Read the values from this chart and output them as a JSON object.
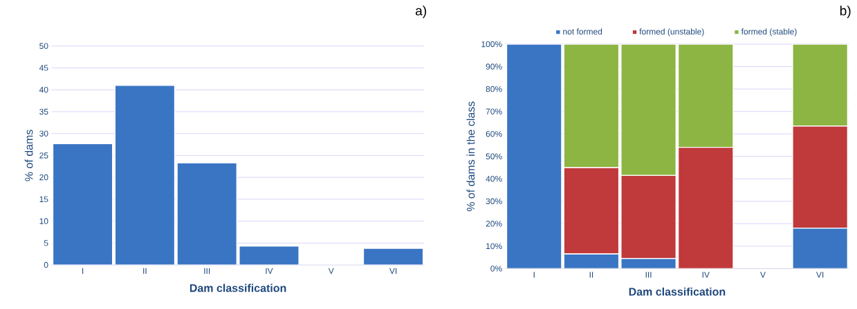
{
  "chart_data": [
    {
      "type": "bar",
      "title": "a)",
      "xlabel": "Dam classification",
      "ylabel": "% of dams",
      "categories": [
        "I",
        "II",
        "III",
        "IV",
        "V",
        "VI"
      ],
      "values": [
        27.7,
        41,
        23.3,
        4.3,
        0,
        3.8
      ],
      "color": "#3a75c4",
      "ylim": [
        0,
        50
      ],
      "yticks": [
        0,
        5,
        10,
        15,
        20,
        25,
        30,
        35,
        40,
        45,
        50
      ],
      "grid": "y",
      "legend": false
    },
    {
      "type": "bar",
      "title": "b)",
      "xlabel": "Dam classification",
      "ylabel": "% of dams in the class",
      "categories": [
        "I",
        "II",
        "III",
        "IV",
        "V",
        "VI"
      ],
      "stacked": true,
      "series": [
        {
          "name": "not formed",
          "color": "#3a75c4",
          "values": [
            100,
            6.5,
            4.5,
            0,
            null,
            18
          ]
        },
        {
          "name": "formed (unstable)",
          "color": "#c0393b",
          "values": [
            0,
            38.5,
            37,
            54,
            null,
            45.5
          ]
        },
        {
          "name": "formed (stable)",
          "color": "#8db543",
          "values": [
            0,
            55,
            58.5,
            46,
            null,
            36.5
          ]
        }
      ],
      "ylim": [
        0,
        100
      ],
      "yticks": [
        {
          "value": 0,
          "label": "0%"
        },
        {
          "value": 10,
          "label": "10%"
        },
        {
          "value": 20,
          "label": "20%"
        },
        {
          "value": 30,
          "label": "30%"
        },
        {
          "value": 40,
          "label": "40%"
        },
        {
          "value": 50,
          "label": "50%"
        },
        {
          "value": 60,
          "label": "60%"
        },
        {
          "value": 70,
          "label": "70%"
        },
        {
          "value": 80,
          "label": "80%"
        },
        {
          "value": 90,
          "label": "90%"
        },
        {
          "value": 100,
          "label": "100%"
        }
      ],
      "grid": "y",
      "legend": "top"
    }
  ]
}
